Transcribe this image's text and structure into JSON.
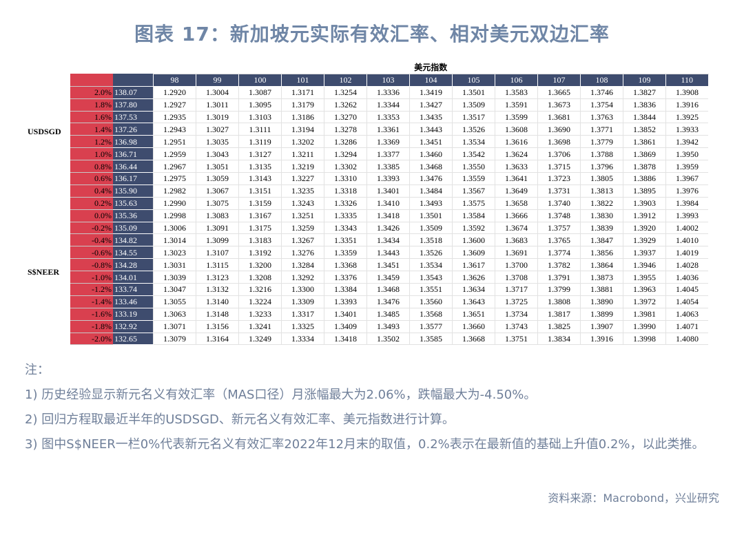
{
  "title": "图表 17：新加坡元实际有效汇率、相对美元双边汇率",
  "table": {
    "corner_label": "USDSGD",
    "row_axis_label": "S$NEER",
    "column_axis_label": "美元指数",
    "dxy_columns": [
      "98",
      "99",
      "100",
      "101",
      "102",
      "103",
      "104",
      "105",
      "106",
      "107",
      "108",
      "109",
      "110"
    ],
    "rows": [
      {
        "pct": "2.0%",
        "neer": "138.07",
        "values": [
          "1.2920",
          "1.3004",
          "1.3087",
          "1.3171",
          "1.3254",
          "1.3336",
          "1.3419",
          "1.3501",
          "1.3583",
          "1.3665",
          "1.3746",
          "1.3827",
          "1.3908"
        ]
      },
      {
        "pct": "1.8%",
        "neer": "137.80",
        "values": [
          "1.2927",
          "1.3011",
          "1.3095",
          "1.3179",
          "1.3262",
          "1.3344",
          "1.3427",
          "1.3509",
          "1.3591",
          "1.3673",
          "1.3754",
          "1.3836",
          "1.3916"
        ]
      },
      {
        "pct": "1.6%",
        "neer": "137.53",
        "values": [
          "1.2935",
          "1.3019",
          "1.3103",
          "1.3186",
          "1.3270",
          "1.3353",
          "1.3435",
          "1.3517",
          "1.3599",
          "1.3681",
          "1.3763",
          "1.3844",
          "1.3925"
        ]
      },
      {
        "pct": "1.4%",
        "neer": "137.26",
        "values": [
          "1.2943",
          "1.3027",
          "1.3111",
          "1.3194",
          "1.3278",
          "1.3361",
          "1.3443",
          "1.3526",
          "1.3608",
          "1.3690",
          "1.3771",
          "1.3852",
          "1.3933"
        ]
      },
      {
        "pct": "1.2%",
        "neer": "136.98",
        "values": [
          "1.2951",
          "1.3035",
          "1.3119",
          "1.3202",
          "1.3286",
          "1.3369",
          "1.3451",
          "1.3534",
          "1.3616",
          "1.3698",
          "1.3779",
          "1.3861",
          "1.3942"
        ]
      },
      {
        "pct": "1.0%",
        "neer": "136.71",
        "values": [
          "1.2959",
          "1.3043",
          "1.3127",
          "1.3211",
          "1.3294",
          "1.3377",
          "1.3460",
          "1.3542",
          "1.3624",
          "1.3706",
          "1.3788",
          "1.3869",
          "1.3950"
        ]
      },
      {
        "pct": "0.8%",
        "neer": "136.44",
        "values": [
          "1.2967",
          "1.3051",
          "1.3135",
          "1.3219",
          "1.3302",
          "1.3385",
          "1.3468",
          "1.3550",
          "1.3633",
          "1.3715",
          "1.3796",
          "1.3878",
          "1.3959"
        ]
      },
      {
        "pct": "0.6%",
        "neer": "136.17",
        "values": [
          "1.2975",
          "1.3059",
          "1.3143",
          "1.3227",
          "1.3310",
          "1.3393",
          "1.3476",
          "1.3559",
          "1.3641",
          "1.3723",
          "1.3805",
          "1.3886",
          "1.3967"
        ]
      },
      {
        "pct": "0.4%",
        "neer": "135.90",
        "values": [
          "1.2982",
          "1.3067",
          "1.3151",
          "1.3235",
          "1.3318",
          "1.3401",
          "1.3484",
          "1.3567",
          "1.3649",
          "1.3731",
          "1.3813",
          "1.3895",
          "1.3976"
        ]
      },
      {
        "pct": "0.2%",
        "neer": "135.63",
        "values": [
          "1.2990",
          "1.3075",
          "1.3159",
          "1.3243",
          "1.3326",
          "1.3410",
          "1.3493",
          "1.3575",
          "1.3658",
          "1.3740",
          "1.3822",
          "1.3903",
          "1.3984"
        ]
      },
      {
        "pct": "0.0%",
        "neer": "135.36",
        "values": [
          "1.2998",
          "1.3083",
          "1.3167",
          "1.3251",
          "1.3335",
          "1.3418",
          "1.3501",
          "1.3584",
          "1.3666",
          "1.3748",
          "1.3830",
          "1.3912",
          "1.3993"
        ]
      },
      {
        "pct": "-0.2%",
        "neer": "135.09",
        "values": [
          "1.3006",
          "1.3091",
          "1.3175",
          "1.3259",
          "1.3343",
          "1.3426",
          "1.3509",
          "1.3592",
          "1.3674",
          "1.3757",
          "1.3839",
          "1.3920",
          "1.4002"
        ]
      },
      {
        "pct": "-0.4%",
        "neer": "134.82",
        "values": [
          "1.3014",
          "1.3099",
          "1.3183",
          "1.3267",
          "1.3351",
          "1.3434",
          "1.3518",
          "1.3600",
          "1.3683",
          "1.3765",
          "1.3847",
          "1.3929",
          "1.4010"
        ]
      },
      {
        "pct": "-0.6%",
        "neer": "134.55",
        "values": [
          "1.3023",
          "1.3107",
          "1.3192",
          "1.3276",
          "1.3359",
          "1.3443",
          "1.3526",
          "1.3609",
          "1.3691",
          "1.3774",
          "1.3856",
          "1.3937",
          "1.4019"
        ]
      },
      {
        "pct": "-0.8%",
        "neer": "134.28",
        "values": [
          "1.3031",
          "1.3115",
          "1.3200",
          "1.3284",
          "1.3368",
          "1.3451",
          "1.3534",
          "1.3617",
          "1.3700",
          "1.3782",
          "1.3864",
          "1.3946",
          "1.4028"
        ]
      },
      {
        "pct": "-1.0%",
        "neer": "134.01",
        "values": [
          "1.3039",
          "1.3123",
          "1.3208",
          "1.3292",
          "1.3376",
          "1.3459",
          "1.3543",
          "1.3626",
          "1.3708",
          "1.3791",
          "1.3873",
          "1.3955",
          "1.4036"
        ]
      },
      {
        "pct": "-1.2%",
        "neer": "133.74",
        "values": [
          "1.3047",
          "1.3132",
          "1.3216",
          "1.3300",
          "1.3384",
          "1.3468",
          "1.3551",
          "1.3634",
          "1.3717",
          "1.3799",
          "1.3881",
          "1.3963",
          "1.4045"
        ]
      },
      {
        "pct": "-1.4%",
        "neer": "133.46",
        "values": [
          "1.3055",
          "1.3140",
          "1.3224",
          "1.3309",
          "1.3393",
          "1.3476",
          "1.3560",
          "1.3643",
          "1.3725",
          "1.3808",
          "1.3890",
          "1.3972",
          "1.4054"
        ]
      },
      {
        "pct": "-1.6%",
        "neer": "133.19",
        "values": [
          "1.3063",
          "1.3148",
          "1.3233",
          "1.3317",
          "1.3401",
          "1.3485",
          "1.3568",
          "1.3651",
          "1.3734",
          "1.3817",
          "1.3899",
          "1.3981",
          "1.4063"
        ]
      },
      {
        "pct": "-1.8%",
        "neer": "132.92",
        "values": [
          "1.3071",
          "1.3156",
          "1.3241",
          "1.3325",
          "1.3409",
          "1.3493",
          "1.3577",
          "1.3660",
          "1.3743",
          "1.3825",
          "1.3907",
          "1.3990",
          "1.4071"
        ]
      },
      {
        "pct": "-2.0%",
        "neer": "132.65",
        "values": [
          "1.3079",
          "1.3164",
          "1.3249",
          "1.3334",
          "1.3418",
          "1.3502",
          "1.3585",
          "1.3668",
          "1.3751",
          "1.3834",
          "1.3916",
          "1.3998",
          "1.4080"
        ]
      }
    ]
  },
  "notes": {
    "heading": "注：",
    "items": [
      "1)   历史经验显示新元名义有效汇率（MAS口径）月涨幅最大为2.06%，跌幅最大为-4.50%。",
      "2)   回归方程取最近半年的USDSGD、新元名义有效汇率、美元指数进行计算。",
      "3)   图中S$NEER一栏0%代表新元名义有效汇率2022年12月末的取值，0.2%表示在最新值的基础上升值0.2%，以此类推。"
    ]
  },
  "source": "资料来源：Macrobond，兴业研究",
  "colors": {
    "title": "#6f86a6",
    "pct_column": "#d9404f",
    "navy": "#3e4c6e",
    "notes_text": "#6f7f99"
  }
}
